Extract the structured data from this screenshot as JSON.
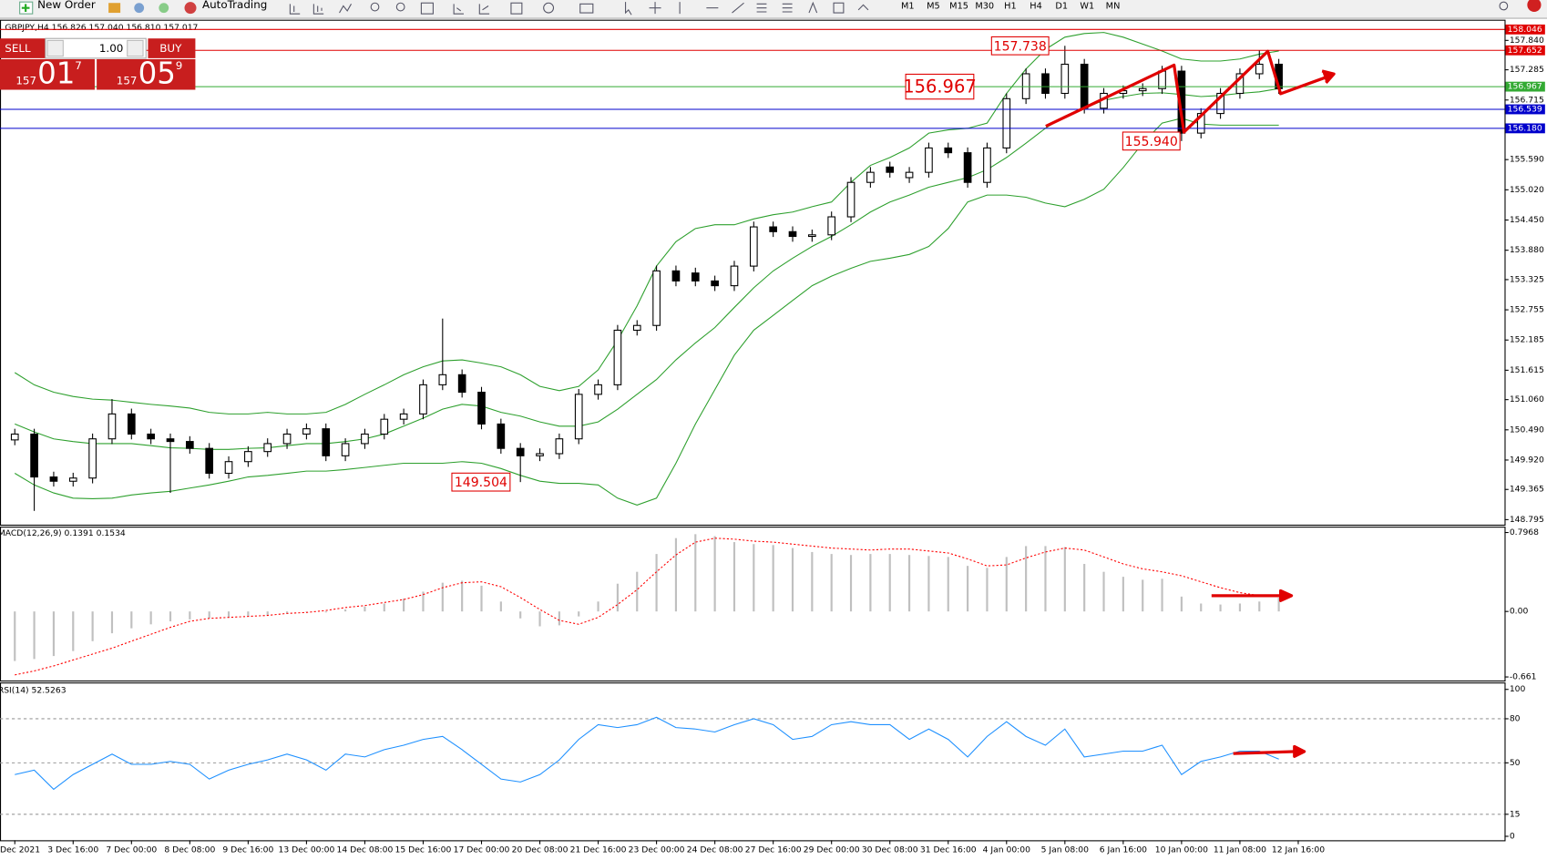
{
  "toolbar": {
    "new_order": "New Order",
    "auto_trading": "AutoTrading",
    "timeframes": [
      "M1",
      "M5",
      "M15",
      "M30",
      "H1",
      "H4",
      "D1",
      "W1",
      "MN"
    ]
  },
  "order_panel": {
    "sell": "SELL",
    "lot": "1.00",
    "buy": "BUY",
    "bid": {
      "big": "157",
      "main": "01",
      "sup": "7"
    },
    "ask": {
      "big": "157",
      "main": "05",
      "sup": "9"
    }
  },
  "chart_data": [
    {
      "type": "candlestick",
      "title": "GBPJPY,H4  156.826 157.040 156.810 157.017",
      "categories": [
        "Dec 2021",
        null,
        null,
        "3 Dec 16:00",
        null,
        null,
        "7 Dec 00:00",
        null,
        null,
        "8 Dec 08:00",
        null,
        null,
        "9 Dec 16:00",
        null,
        null,
        "13 Dec 00:00",
        null,
        null,
        "14 Dec 08:00",
        null,
        null,
        "15 Dec 16:00",
        null,
        null,
        "17 Dec 00:00",
        null,
        null,
        "20 Dec 08:00",
        null,
        null,
        "21 Dec 16:00",
        null,
        null,
        "23 Dec 00:00",
        null,
        null,
        "24 Dec 08:00",
        null,
        null,
        "27 Dec 16:00",
        null,
        null,
        "29 Dec 00:00",
        null,
        null,
        "30 Dec 08:00",
        null,
        null,
        "31 Dec 16:00",
        null,
        null,
        "4 Jan 00:00",
        null,
        null,
        "5 Jan 08:00",
        null,
        null,
        "6 Jan 16:00",
        null,
        null,
        "10 Jan 00:00",
        null,
        null,
        "11 Jan 08:00",
        null,
        null,
        "12 Jan 16:00"
      ],
      "open": [
        150.3,
        150.41,
        149.6,
        149.52,
        149.58,
        150.32,
        150.79,
        150.41,
        150.32,
        150.27,
        150.14,
        149.67,
        149.89,
        150.08,
        150.23,
        150.41,
        150.51,
        150.0,
        150.23,
        150.41,
        150.69,
        150.79,
        151.34,
        151.53,
        151.2,
        150.6,
        150.14,
        150.0,
        150.04,
        150.32,
        151.16,
        151.34,
        152.37,
        152.46,
        153.49,
        153.45,
        153.3,
        153.21,
        153.58,
        154.32,
        154.23,
        154.14,
        154.17,
        154.51,
        155.16,
        155.45,
        155.25,
        155.35,
        155.81,
        155.72,
        155.16,
        155.81,
        156.74,
        157.21,
        156.84,
        157.39,
        156.56,
        156.84,
        156.89,
        156.93,
        157.26,
        156.09,
        156.46,
        156.84,
        157.21,
        157.39,
        null
      ],
      "high": [
        150.51,
        150.51,
        149.7,
        149.68,
        150.42,
        151.07,
        150.89,
        150.51,
        150.42,
        150.37,
        150.24,
        149.99,
        150.18,
        150.33,
        150.51,
        150.61,
        150.61,
        150.33,
        150.51,
        150.79,
        150.89,
        151.44,
        152.59,
        151.63,
        151.3,
        150.7,
        150.24,
        150.14,
        150.42,
        151.26,
        151.44,
        152.47,
        152.56,
        153.59,
        153.59,
        153.55,
        153.4,
        153.68,
        154.42,
        154.42,
        154.33,
        154.27,
        154.61,
        155.26,
        155.45,
        155.55,
        155.45,
        155.91,
        155.91,
        155.82,
        155.91,
        156.84,
        157.31,
        157.31,
        157.738,
        157.49,
        156.94,
        156.99,
        157.03,
        157.36,
        157.36,
        156.56,
        156.94,
        157.31,
        157.65,
        157.49,
        null
      ],
      "low": [
        150.2,
        148.96,
        149.42,
        149.42,
        149.48,
        150.22,
        150.31,
        150.22,
        149.3,
        150.04,
        149.57,
        149.57,
        149.79,
        149.98,
        150.13,
        150.31,
        149.9,
        149.9,
        150.13,
        150.31,
        150.59,
        150.69,
        151.24,
        151.1,
        150.5,
        150.04,
        149.504,
        149.9,
        149.94,
        150.22,
        151.06,
        151.24,
        152.27,
        152.36,
        153.2,
        153.2,
        153.11,
        153.11,
        153.48,
        154.13,
        154.04,
        154.04,
        154.07,
        154.41,
        155.06,
        155.25,
        155.15,
        155.25,
        155.62,
        155.06,
        155.06,
        155.71,
        156.64,
        156.74,
        156.74,
        156.46,
        156.46,
        156.74,
        156.79,
        156.83,
        155.94,
        155.99,
        156.36,
        156.74,
        157.11,
        156.83,
        null
      ],
      "close": [
        150.41,
        149.6,
        149.52,
        149.58,
        150.32,
        150.79,
        150.41,
        150.32,
        150.27,
        150.14,
        149.67,
        149.89,
        150.08,
        150.23,
        150.41,
        150.51,
        150.0,
        150.23,
        150.41,
        150.69,
        150.79,
        151.34,
        151.53,
        151.2,
        150.6,
        150.14,
        150.0,
        150.04,
        150.32,
        151.16,
        151.34,
        152.37,
        152.46,
        153.49,
        153.3,
        153.3,
        153.21,
        153.58,
        154.32,
        154.23,
        154.14,
        154.17,
        154.51,
        155.16,
        155.35,
        155.35,
        155.35,
        155.81,
        155.72,
        155.16,
        155.81,
        156.74,
        157.21,
        156.84,
        157.39,
        156.56,
        156.84,
        156.89,
        156.93,
        157.26,
        156.09,
        156.46,
        156.84,
        157.21,
        157.39,
        156.93,
        null
      ],
      "up_color": "#ffffff",
      "down_color": "#000000",
      "wick_color": "#000000",
      "series": [
        {
          "color": "#2ea02e",
          "values": [
            151.57,
            151.34,
            151.2,
            151.12,
            151.07,
            151.05,
            151.01,
            150.97,
            150.94,
            150.9,
            150.82,
            150.79,
            150.79,
            150.82,
            150.79,
            150.79,
            150.82,
            150.97,
            151.16,
            151.34,
            151.53,
            151.68,
            151.79,
            151.81,
            151.75,
            151.68,
            151.53,
            151.31,
            151.23,
            151.31,
            151.62,
            152.18,
            152.83,
            153.58,
            154.04,
            154.29,
            154.36,
            154.36,
            154.47,
            154.55,
            154.6,
            154.7,
            154.79,
            155.16,
            155.48,
            155.63,
            155.81,
            156.09,
            156.15,
            156.18,
            156.28,
            156.84,
            157.3,
            157.67,
            157.9,
            157.97,
            157.99,
            157.9,
            157.77,
            157.64,
            157.49,
            157.45,
            157.45,
            157.49,
            157.58,
            157.64,
            null
          ]
        },
        {
          "color": "#2ea02e",
          "values": [
            150.6,
            150.45,
            150.32,
            150.27,
            150.23,
            150.23,
            150.23,
            150.19,
            150.15,
            150.14,
            150.12,
            150.12,
            150.14,
            150.15,
            150.19,
            150.23,
            150.23,
            150.27,
            150.32,
            150.41,
            150.56,
            150.71,
            150.88,
            150.97,
            150.94,
            150.82,
            150.75,
            150.64,
            150.56,
            150.56,
            150.64,
            150.88,
            151.16,
            151.44,
            151.81,
            152.13,
            152.42,
            152.8,
            153.17,
            153.49,
            153.73,
            153.95,
            154.14,
            154.36,
            154.6,
            154.79,
            154.92,
            155.07,
            155.16,
            155.25,
            155.4,
            155.63,
            155.9,
            156.18,
            156.41,
            156.56,
            156.71,
            156.78,
            156.84,
            156.85,
            156.82,
            156.78,
            156.8,
            156.84,
            156.87,
            156.93,
            null
          ]
        },
        {
          "color": "#2ea02e",
          "values": [
            149.67,
            149.45,
            149.3,
            149.2,
            149.19,
            149.2,
            149.26,
            149.3,
            149.33,
            149.39,
            149.45,
            149.52,
            149.6,
            149.63,
            149.67,
            149.71,
            149.71,
            149.74,
            149.78,
            149.82,
            149.86,
            149.86,
            149.86,
            149.89,
            149.86,
            149.76,
            149.63,
            149.52,
            149.48,
            149.48,
            149.45,
            149.2,
            149.07,
            149.2,
            149.86,
            150.6,
            151.25,
            151.9,
            152.37,
            152.65,
            152.93,
            153.21,
            153.39,
            153.54,
            153.67,
            153.73,
            153.8,
            153.95,
            154.29,
            154.79,
            154.92,
            154.92,
            154.88,
            154.77,
            154.7,
            154.84,
            155.03,
            155.44,
            155.9,
            156.28,
            156.37,
            156.26,
            156.24,
            156.24,
            156.24,
            156.24,
            null
          ]
        }
      ],
      "ylim": [
        148.7,
        158.23
      ],
      "yticks": [
        {
          "value": 157.84,
          "label": "157.840"
        },
        {
          "value": 157.285,
          "label": "157.285"
        },
        {
          "value": 156.715,
          "label": "156.715"
        },
        {
          "value": 155.59,
          "label": "155.590"
        },
        {
          "value": 155.02,
          "label": "155.020"
        },
        {
          "value": 154.45,
          "label": "154.450"
        },
        {
          "value": 153.88,
          "label": "153.880"
        },
        {
          "value": 153.325,
          "label": "153.325"
        },
        {
          "value": 152.755,
          "label": "152.755"
        },
        {
          "value": 152.185,
          "label": "152.185"
        },
        {
          "value": 151.615,
          "label": "151.615"
        },
        {
          "value": 151.06,
          "label": "151.060"
        },
        {
          "value": 150.49,
          "label": "150.490"
        },
        {
          "value": 149.92,
          "label": "149.920"
        },
        {
          "value": 149.365,
          "label": "149.365"
        },
        {
          "value": 148.795,
          "label": "148.795"
        }
      ],
      "hlines": [
        {
          "value": 158.046,
          "color": "#e00000"
        },
        {
          "value": 157.652,
          "color": "#e00000"
        },
        {
          "value": 156.967,
          "color": "#33aa33"
        },
        {
          "value": 156.539,
          "color": "#0000cc"
        },
        {
          "value": 156.18,
          "label": "156.180",
          "color": "#0000cc"
        }
      ],
      "annotations": [
        {
          "value": 157.738
        },
        {
          "value": 156.967
        },
        {
          "value": 155.94,
          "label": "155.940"
        },
        {
          "value": 149.504
        }
      ],
      "annotation_color": "#e00000",
      "grid": false
    },
    {
      "type": "macd",
      "title": "MACD(12,26,9) 0.1391 0.1534",
      "color": "#c0c0c0",
      "values": [
        -0.5,
        -0.48,
        -0.45,
        -0.4,
        -0.3,
        -0.22,
        -0.17,
        -0.13,
        -0.1,
        -0.08,
        -0.07,
        -0.06,
        -0.05,
        -0.04,
        -0.02,
        0.0,
        -0.01,
        0.02,
        0.05,
        0.08,
        0.13,
        0.2,
        0.29,
        0.31,
        0.26,
        0.1,
        -0.07,
        -0.15,
        -0.14,
        -0.05,
        0.1,
        0.28,
        0.4,
        0.58,
        0.74,
        0.78,
        0.76,
        0.7,
        0.68,
        0.67,
        0.64,
        0.6,
        0.58,
        0.57,
        0.58,
        0.58,
        0.57,
        0.56,
        0.55,
        0.46,
        0.44,
        0.55,
        0.66,
        0.66,
        0.65,
        0.48,
        0.4,
        0.35,
        0.32,
        0.33,
        0.15,
        0.08,
        0.07,
        0.08,
        0.1,
        0.1391,
        null
      ],
      "series": [
        {
          "color": "#ff0000",
          "values": [
            -0.64,
            -0.6,
            -0.55,
            -0.49,
            -0.43,
            -0.37,
            -0.3,
            -0.23,
            -0.16,
            -0.1,
            -0.07,
            -0.06,
            -0.05,
            -0.04,
            -0.02,
            -0.01,
            0.01,
            0.04,
            0.06,
            0.09,
            0.12,
            0.17,
            0.24,
            0.29,
            0.3,
            0.25,
            0.14,
            0.02,
            -0.09,
            -0.13,
            -0.06,
            0.07,
            0.22,
            0.4,
            0.57,
            0.7,
            0.74,
            0.73,
            0.71,
            0.7,
            0.68,
            0.66,
            0.64,
            0.63,
            0.62,
            0.63,
            0.63,
            0.61,
            0.59,
            0.53,
            0.46,
            0.47,
            0.54,
            0.6,
            0.64,
            0.62,
            0.55,
            0.48,
            0.43,
            0.4,
            0.36,
            0.3,
            0.24,
            0.19,
            0.16,
            0.1534,
            null
          ]
        }
      ],
      "ylim": [
        -0.697,
        0.856
      ],
      "yticks": [
        0.7968,
        {
          "value": 0,
          "label": "0.00"
        },
        -0.661
      ]
    },
    {
      "type": "line",
      "title": "RSI(14) 52.5263",
      "color": "#1e90ff",
      "values": [
        42,
        45,
        32,
        42,
        49,
        56,
        49,
        49,
        51,
        49,
        39,
        45,
        49,
        52,
        56,
        52,
        45,
        56,
        54,
        59,
        62,
        66,
        68,
        59,
        49,
        39,
        37,
        42,
        52,
        66,
        76,
        74,
        76,
        81,
        74,
        73,
        71,
        76,
        80,
        76,
        66,
        68,
        76,
        78,
        76,
        76,
        66,
        73,
        66,
        54,
        68,
        78,
        68,
        62,
        73,
        54,
        56,
        58,
        58,
        62,
        42,
        51,
        54,
        58,
        58,
        52.5263,
        null
      ],
      "ylim": [
        -2.7,
        104.7
      ],
      "yticks": [
        100,
        80,
        50,
        15,
        0
      ],
      "levels": [
        80,
        50,
        15
      ]
    }
  ]
}
